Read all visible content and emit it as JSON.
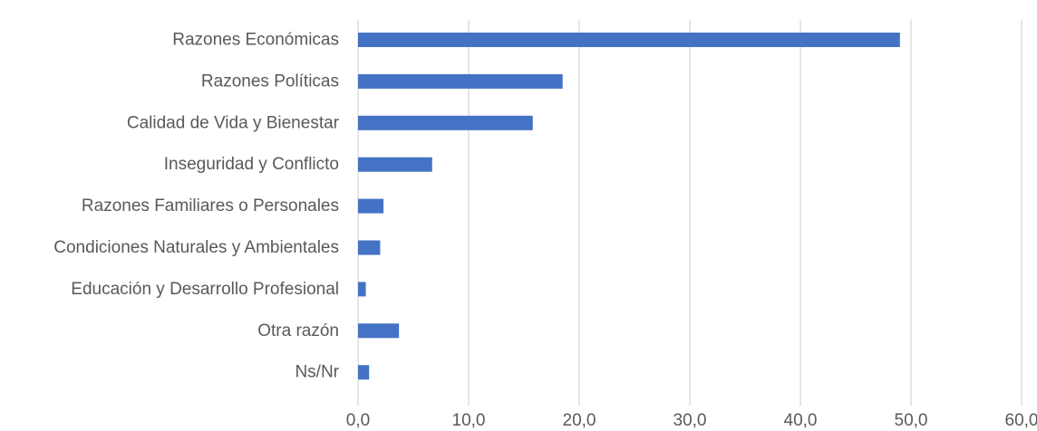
{
  "chart_data": {
    "type": "bar",
    "orientation": "horizontal",
    "categories": [
      "Razones Económicas",
      "Razones Políticas",
      "Calidad de Vida y Bienestar",
      "Inseguridad y Conflicto",
      "Razones Familiares o Personales",
      "Condiciones Naturales y Ambientales",
      "Educación y Desarrollo Profesional",
      "Otra razón",
      "Ns/Nr"
    ],
    "values": [
      49.0,
      18.5,
      15.8,
      6.7,
      2.3,
      2.0,
      0.7,
      3.7,
      1.0
    ],
    "xlim": [
      0,
      60
    ],
    "xticks": [
      0,
      10,
      20,
      30,
      40,
      50,
      60
    ],
    "xtick_labels": [
      "0,0",
      "10,0",
      "20,0",
      "30,0",
      "40,0",
      "50,0",
      "60,0"
    ],
    "title": "",
    "xlabel": "",
    "ylabel": "",
    "grid": "vertical",
    "legend": "none",
    "colors": {
      "bar": "#4472c4",
      "grid": "#d9d9d9",
      "text": "#595959"
    }
  }
}
